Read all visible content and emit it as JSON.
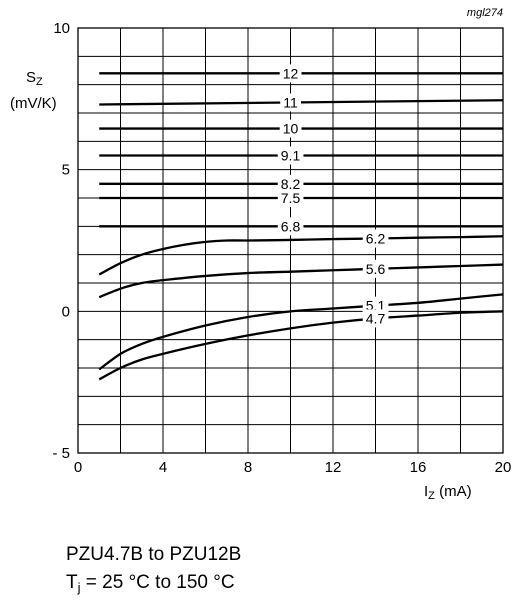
{
  "figure_id": "mgl274",
  "caption": {
    "line1": "PZU4.7B to PZU12B",
    "line2_symbol": "T",
    "line2_subscript": "j",
    "line2_rest": " = 25 °C to 150 °C"
  },
  "chart_data": {
    "type": "line",
    "title": "",
    "ylabel": {
      "symbol": "S",
      "subscript": "Z",
      "unit": "(mV/K)"
    },
    "xlabel": {
      "symbol": "I",
      "subscript": "Z",
      "unit": " (mA)"
    },
    "xlim": [
      0,
      20
    ],
    "ylim": [
      -5,
      10
    ],
    "x_ticks": [
      0,
      4,
      8,
      12,
      16,
      20
    ],
    "x_tick_labels": [
      "0",
      "4",
      "8",
      "12",
      "16",
      "20"
    ],
    "y_ticks": [
      -5,
      0,
      5,
      10
    ],
    "y_tick_labels": [
      "- 5",
      "0",
      "5",
      "10"
    ],
    "x_grid_step": 2,
    "y_grid_step": 1,
    "grid": true,
    "legend": "none",
    "series": [
      {
        "name": "12",
        "label_x": 10,
        "x": [
          1,
          20
        ],
        "y": [
          8.4,
          8.4
        ]
      },
      {
        "name": "11",
        "label_x": 10,
        "x": [
          1,
          20
        ],
        "y": [
          7.3,
          7.45
        ]
      },
      {
        "name": "10",
        "label_x": 10,
        "x": [
          1,
          20
        ],
        "y": [
          6.45,
          6.45
        ]
      },
      {
        "name": "9.1",
        "label_x": 10,
        "x": [
          1,
          20
        ],
        "y": [
          5.5,
          5.5
        ]
      },
      {
        "name": "8.2",
        "label_x": 10,
        "x": [
          1,
          20
        ],
        "y": [
          4.5,
          4.5
        ]
      },
      {
        "name": "7.5",
        "label_x": 10,
        "x": [
          1,
          20
        ],
        "y": [
          4.0,
          4.0
        ]
      },
      {
        "name": "6.8",
        "label_x": 10,
        "x": [
          1,
          20
        ],
        "y": [
          3.0,
          3.0
        ]
      },
      {
        "name": "6.2",
        "label_x": 14,
        "x": [
          1,
          2,
          3,
          4,
          5,
          6,
          7,
          8,
          10,
          12,
          14,
          16,
          18,
          20
        ],
        "y": [
          1.3,
          1.7,
          2.0,
          2.2,
          2.35,
          2.45,
          2.5,
          2.5,
          2.52,
          2.55,
          2.57,
          2.6,
          2.62,
          2.65
        ]
      },
      {
        "name": "5.6",
        "label_x": 14,
        "x": [
          1,
          2,
          3,
          4,
          6,
          8,
          10,
          12,
          14,
          16,
          18,
          20
        ],
        "y": [
          0.5,
          0.8,
          1.0,
          1.1,
          1.25,
          1.35,
          1.4,
          1.45,
          1.5,
          1.55,
          1.6,
          1.65
        ]
      },
      {
        "name": "5.1",
        "label_x": 14,
        "x": [
          1,
          2,
          3,
          4,
          6,
          8,
          10,
          12,
          14,
          16,
          18,
          20
        ],
        "y": [
          -2.05,
          -1.5,
          -1.15,
          -0.9,
          -0.5,
          -0.2,
          0.0,
          0.1,
          0.2,
          0.3,
          0.45,
          0.6
        ]
      },
      {
        "name": "4.7",
        "label_x": 14,
        "x": [
          1,
          2,
          3,
          4,
          6,
          8,
          10,
          12,
          14,
          16,
          18,
          20
        ],
        "y": [
          -2.4,
          -2.0,
          -1.7,
          -1.5,
          -1.15,
          -0.85,
          -0.6,
          -0.4,
          -0.25,
          -0.15,
          -0.05,
          0.0
        ]
      }
    ]
  }
}
